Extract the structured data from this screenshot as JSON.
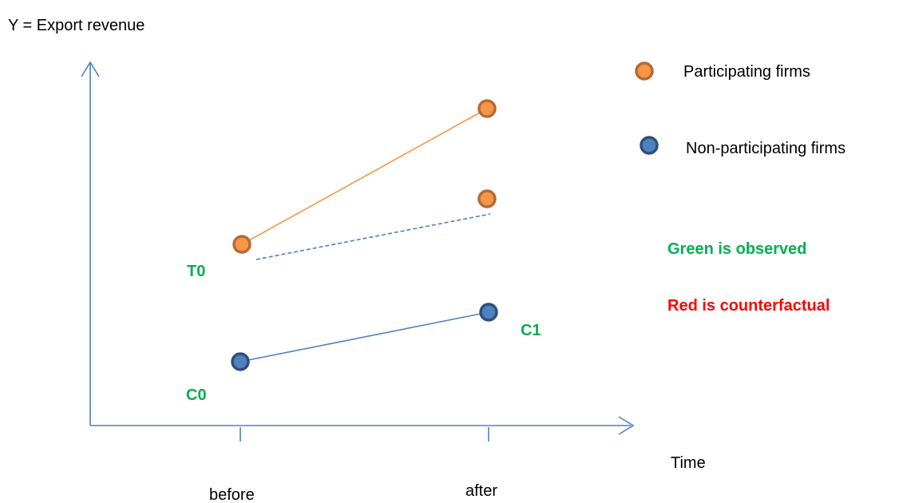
{
  "y_axis_title": "Y = Export revenue",
  "x_axis_title": "Time",
  "x_ticks": [
    "before",
    "after"
  ],
  "legend": {
    "participating": "Participating firms",
    "non_participating": "Non-participating firms"
  },
  "notes": {
    "observed": "Green is observed",
    "counterfactual": "Red is counterfactual"
  },
  "point_labels": {
    "t0": "T0",
    "c0": "C0",
    "c1": "C1"
  },
  "colors": {
    "axis": "#4f81bd",
    "participating": "#f79646",
    "participating_ring": "#b46a3a",
    "non_participating": "#4f81bd",
    "non_participating_ring": "#2e4f7f",
    "observed_text": "#00b050",
    "counterfactual_text": "#ff0000"
  }
}
